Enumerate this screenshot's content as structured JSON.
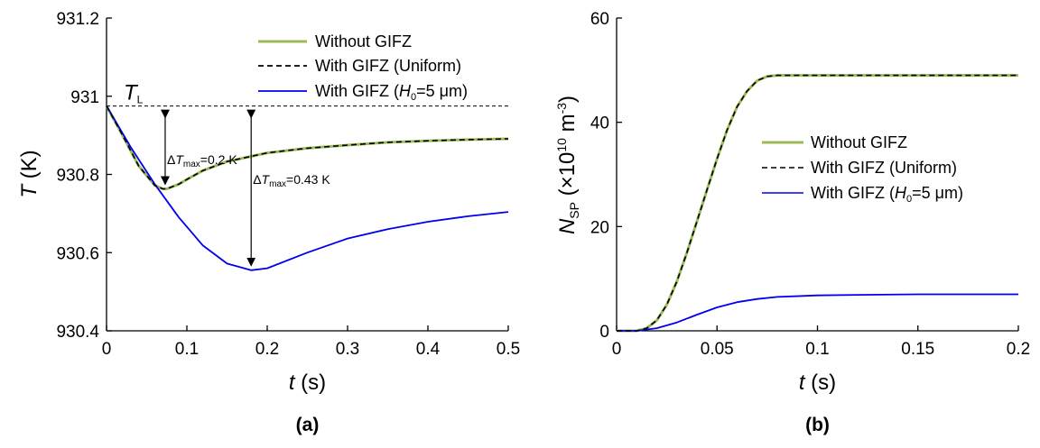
{
  "chart_data": [
    {
      "type": "line",
      "panel_label": "(a)",
      "xlabel": {
        "main": "t",
        "unit": " (s)"
      },
      "ylabel": {
        "main": "T",
        "unit": " (K)"
      },
      "xlim": [
        0,
        0.5
      ],
      "ylim": [
        930.4,
        931.2
      ],
      "xticks": [
        "0",
        "0.1",
        "0.2",
        "0.3",
        "0.4",
        "0.5"
      ],
      "xtick_values": [
        0,
        0.1,
        0.2,
        0.3,
        0.4,
        0.5
      ],
      "yticks": [
        "930.4",
        "930.6",
        "930.8",
        "931",
        "931.2"
      ],
      "ytick_values": [
        930.4,
        930.6,
        930.8,
        931.0,
        931.2
      ],
      "legend_position": "top-right",
      "series": [
        {
          "name": "Without GIFZ",
          "color": "#9bbb59",
          "style": "solid",
          "x": [
            0,
            0.02,
            0.04,
            0.06,
            0.07,
            0.075,
            0.09,
            0.1,
            0.12,
            0.15,
            0.2,
            0.25,
            0.3,
            0.35,
            0.4,
            0.45,
            0.5
          ],
          "y": [
            930.975,
            930.9,
            930.822,
            930.772,
            930.763,
            930.763,
            930.775,
            930.787,
            930.81,
            930.833,
            930.855,
            930.867,
            930.875,
            930.882,
            930.886,
            930.889,
            930.891
          ]
        },
        {
          "name": "With GIFZ (Uniform)",
          "color": "#000000",
          "style": "dashed",
          "x": [
            0,
            0.02,
            0.04,
            0.06,
            0.07,
            0.075,
            0.09,
            0.1,
            0.12,
            0.15,
            0.2,
            0.25,
            0.3,
            0.35,
            0.4,
            0.45,
            0.5
          ],
          "y": [
            930.975,
            930.9,
            930.822,
            930.772,
            930.763,
            930.763,
            930.775,
            930.787,
            930.81,
            930.833,
            930.855,
            930.867,
            930.875,
            930.882,
            930.886,
            930.889,
            930.891
          ]
        },
        {
          "name": "With GIFZ (H0=5 μm)",
          "color": "#0000ee",
          "style": "solid",
          "x": [
            0,
            0.03,
            0.06,
            0.09,
            0.12,
            0.15,
            0.18,
            0.2,
            0.25,
            0.3,
            0.35,
            0.4,
            0.45,
            0.5
          ],
          "y": [
            930.975,
            930.87,
            930.775,
            930.69,
            930.618,
            930.572,
            930.555,
            930.56,
            930.6,
            930.636,
            930.66,
            930.679,
            930.693,
            930.704
          ]
        }
      ],
      "reference_line": {
        "label": "T",
        "label_sub": "L",
        "y": 930.975
      },
      "annotations": [
        {
          "label": "ΔT",
          "sub": "max",
          "value": "=0.2 K",
          "x": 0.073,
          "y_from": 930.975,
          "y_to": 930.763
        },
        {
          "label": "ΔT",
          "sub": "max",
          "value": "=0.43 K",
          "x": 0.18,
          "y_from": 930.975,
          "y_to": 930.555
        }
      ]
    },
    {
      "type": "line",
      "panel_label": "(b)",
      "xlabel": {
        "main": "t",
        "unit": " (s)"
      },
      "ylabel": {
        "main": "N",
        "sub": "SP",
        "unit": " (×10",
        "sup": "10",
        "unit2": " m",
        "sup2": "-3",
        "close": ")"
      },
      "xlim": [
        0,
        0.2
      ],
      "ylim": [
        0,
        60
      ],
      "xticks": [
        "0",
        "0.05",
        "0.1",
        "0.15",
        "0.2"
      ],
      "xtick_values": [
        0,
        0.05,
        0.1,
        0.15,
        0.2
      ],
      "yticks": [
        "0",
        "20",
        "40",
        "60"
      ],
      "ytick_values": [
        0,
        20,
        40,
        60
      ],
      "legend_position": "center-right",
      "series": [
        {
          "name": "Without GIFZ",
          "color": "#9bbb59",
          "style": "solid",
          "x": [
            0,
            0.01,
            0.015,
            0.02,
            0.025,
            0.03,
            0.035,
            0.04,
            0.045,
            0.05,
            0.055,
            0.06,
            0.065,
            0.07,
            0.075,
            0.08,
            0.1,
            0.15,
            0.2
          ],
          "y": [
            0,
            0,
            0.5,
            2,
            5,
            9.5,
            15,
            21,
            27,
            33,
            38.5,
            43,
            46,
            48,
            48.8,
            49,
            49,
            49,
            49
          ]
        },
        {
          "name": "With GIFZ (Uniform)",
          "color": "#000000",
          "style": "dashed",
          "x": [
            0,
            0.01,
            0.015,
            0.02,
            0.025,
            0.03,
            0.035,
            0.04,
            0.045,
            0.05,
            0.055,
            0.06,
            0.065,
            0.07,
            0.075,
            0.08,
            0.1,
            0.15,
            0.2
          ],
          "y": [
            0,
            0,
            0.5,
            2,
            5,
            9.5,
            15,
            21,
            27,
            33,
            38.5,
            43,
            46,
            48,
            48.8,
            49,
            49,
            49,
            49
          ]
        },
        {
          "name": "With GIFZ (H0=5 μm)",
          "color": "#0000ee",
          "style": "solid",
          "x": [
            0,
            0.01,
            0.02,
            0.03,
            0.04,
            0.05,
            0.06,
            0.07,
            0.08,
            0.1,
            0.12,
            0.15,
            0.2
          ],
          "y": [
            0,
            0,
            0.5,
            1.6,
            3.1,
            4.5,
            5.5,
            6.1,
            6.5,
            6.8,
            6.9,
            7.0,
            7.0
          ]
        }
      ]
    }
  ],
  "legend_text": {
    "without": "Without GIFZ",
    "uniform": "With GIFZ (Uniform)",
    "h0_pre": "With GIFZ (",
    "h0_var": "H",
    "h0_sub": "0",
    "h0_post": "=5 μm)"
  }
}
